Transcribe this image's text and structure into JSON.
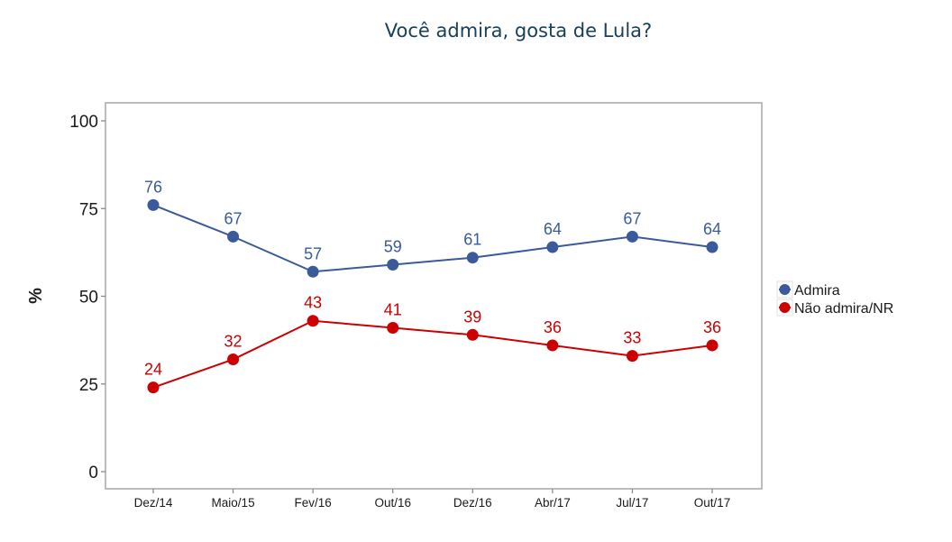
{
  "chart_data": {
    "type": "line",
    "title": "Você admira, gosta de Lula?",
    "xlabel": "",
    "ylabel": "%",
    "ylim": [
      0,
      100
    ],
    "yticks": [
      0,
      25,
      50,
      75,
      100
    ],
    "ytick_labels": [
      "0",
      "25",
      "50",
      "75",
      "100"
    ],
    "categories": [
      "Dez/14",
      "Maio/15",
      "Fev/16",
      "Out/16",
      "Dez/16",
      "Abr/17",
      "Jul/17",
      "Out/17"
    ],
    "series": [
      {
        "name": "Admira",
        "color": "#3a5a9c",
        "values": [
          76,
          67,
          57,
          59,
          61,
          64,
          67,
          64
        ]
      },
      {
        "name": "Não admira/NR",
        "color": "#cc0000",
        "values": [
          24,
          32,
          43,
          41,
          39,
          36,
          33,
          36
        ]
      }
    ],
    "data_labels": true,
    "grid": false,
    "legend": {
      "position": "right",
      "entries": [
        "Admira",
        "Não admira/NR"
      ]
    }
  }
}
